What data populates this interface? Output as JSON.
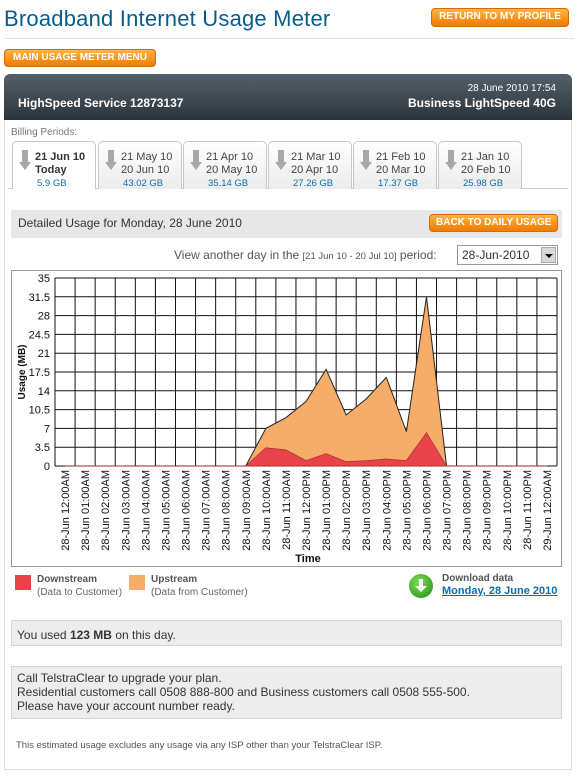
{
  "header": {
    "title": "Broadband Internet Usage Meter",
    "return_button": "RETURN TO MY PROFILE",
    "main_menu_button": "MAIN USAGE METER MENU"
  },
  "service": {
    "datetime": "28 June 2010 17:54",
    "name": "HighSpeed Service 12873137",
    "plan": "Business LightSpeed 40G"
  },
  "billing": {
    "label": "Billing Periods:",
    "tabs": [
      {
        "line1": "21 Jun 10",
        "line2": "Today",
        "usage": "5.9 GB",
        "active": true
      },
      {
        "line1": "21 May 10",
        "line2": "20 Jun 10",
        "usage": "43.02 GB",
        "active": false
      },
      {
        "line1": "21 Apr 10",
        "line2": "20 May 10",
        "usage": "35.14 GB",
        "active": false
      },
      {
        "line1": "21 Mar 10",
        "line2": "20 Apr 10",
        "usage": "27.26 GB",
        "active": false
      },
      {
        "line1": "21 Feb 10",
        "line2": "20 Mar 10",
        "usage": "17.37 GB",
        "active": false
      },
      {
        "line1": "21 Jan 10",
        "line2": "20 Feb 10",
        "usage": "25.98 GB",
        "active": false
      }
    ]
  },
  "detail": {
    "title": "Detailed Usage for Monday, 28 June 2010",
    "back_button": "BACK TO DAILY USAGE",
    "view_prefix": "View another day in the",
    "view_range": "[21 Jun 10 - 20 Jul 10]",
    "view_suffix": "period:",
    "selected_day": "28-Jun-2010"
  },
  "colors": {
    "downstream": "#e8434a",
    "upstream": "#f6ad6a",
    "accent": "#f07a00",
    "link": "#0a6ea8"
  },
  "chart_data": {
    "type": "area",
    "xlabel": "Time",
    "ylabel": "Usage (MB)",
    "ylim": [
      0,
      35
    ],
    "yticks": [
      0,
      3.5,
      7,
      10.5,
      14,
      17.5,
      21,
      24.5,
      28,
      31.5,
      35
    ],
    "grid": true,
    "stacked": true,
    "categories": [
      "28-Jun 12:00AM",
      "28-Jun 01:00AM",
      "28-Jun 02:00AM",
      "28-Jun 03:00AM",
      "28-Jun 04:00AM",
      "28-Jun 05:00AM",
      "28-Jun 06:00AM",
      "28-Jun 07:00AM",
      "28-Jun 08:00AM",
      "28-Jun 09:00AM",
      "28-Jun 10:00AM",
      "28-Jun 11:00AM",
      "28-Jun 12:00PM",
      "28-Jun 01:00PM",
      "28-Jun 02:00PM",
      "28-Jun 03:00PM",
      "28-Jun 04:00PM",
      "28-Jun 05:00PM",
      "28-Jun 06:00PM",
      "28-Jun 07:00PM",
      "28-Jun 08:00PM",
      "28-Jun 09:00PM",
      "28-Jun 10:00PM",
      "28-Jun 11:00PM",
      "29-Jun 12:00AM"
    ],
    "series": [
      {
        "name": "Downstream",
        "values": [
          0,
          0,
          0,
          0,
          0,
          0,
          0,
          0,
          0,
          0,
          3.4,
          3.0,
          1.0,
          2.3,
          0.8,
          1.0,
          1.3,
          1.0,
          6.2,
          0,
          0,
          0,
          0,
          0,
          0
        ]
      },
      {
        "name": "Upstream",
        "values": [
          0,
          0,
          0,
          0,
          0,
          0,
          0,
          0,
          0,
          0,
          3.6,
          6.0,
          11.0,
          15.7,
          8.7,
          11.5,
          15.2,
          5.4,
          25.3,
          0,
          0,
          0,
          0,
          0,
          0
        ]
      }
    ]
  },
  "legend": {
    "downstream_title": "Downstream",
    "downstream_sub": "(Data to Customer)",
    "upstream_title": "Upstream",
    "upstream_sub": "(Data from Customer)"
  },
  "download": {
    "title": "Download data",
    "link": "Monday, 28 June 2010"
  },
  "summary": {
    "used_prefix": "You used",
    "used_value": "123 MB",
    "used_suffix": "on this day."
  },
  "upgrade": {
    "line1": "Call TelstraClear to upgrade your plan.",
    "line2": "Residential customers call 0508 888-800 and Business customers call 0508 555-500.",
    "line3": "Please have your account number ready."
  },
  "footnote": "This estimated usage excludes any usage via any ISP other than your TelstraClear ISP."
}
